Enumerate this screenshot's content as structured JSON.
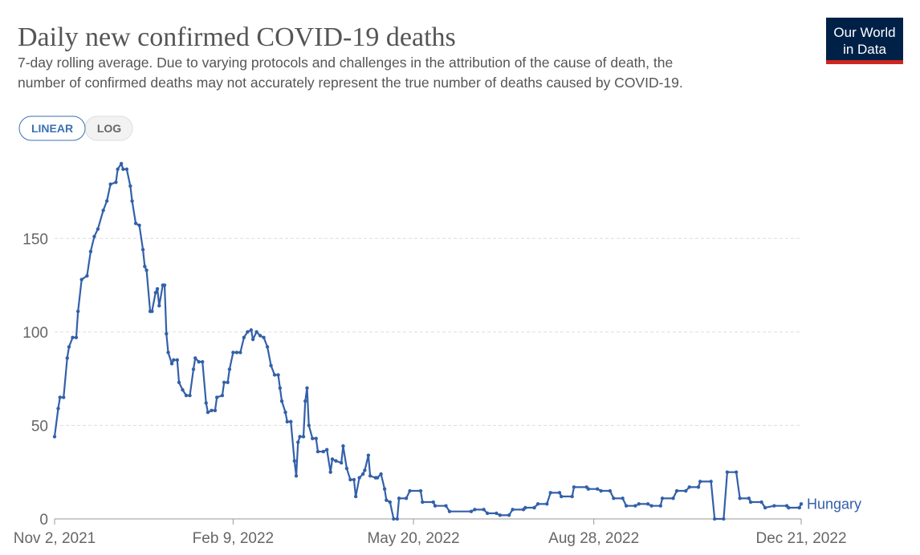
{
  "chart_data": {
    "type": "line",
    "title": "Daily new confirmed COVID-19 deaths",
    "subtitle": [
      "7-day rolling average. Due to varying protocols and challenges in the attribution of the cause of death, the",
      "number of confirmed deaths may not accurately represent the true number of deaths caused by COVID-19."
    ],
    "scale_buttons": [
      "LINEAR",
      "LOG"
    ],
    "log_scale": false,
    "grid": true,
    "xlim": [
      "2021-11-02",
      "2022-12-21"
    ],
    "xticks": [
      {
        "value": "2021-11-02",
        "label": "Nov 2, 2021"
      },
      {
        "value": "2022-02-09",
        "label": "Feb 9, 2022"
      },
      {
        "value": "2022-05-20",
        "label": "May 20, 2022"
      },
      {
        "value": "2022-08-28",
        "label": "Aug 28, 2022"
      },
      {
        "value": "2022-12-21",
        "label": "Dec 21, 2022"
      }
    ],
    "ylim": [
      0,
      190
    ],
    "yticks": [
      0,
      50,
      100,
      150
    ],
    "x": [
      "2021-11-02",
      "2021-11-04",
      "2021-11-05",
      "2021-11-07",
      "2021-11-09",
      "2021-11-10",
      "2021-11-12",
      "2021-11-14",
      "2021-11-15",
      "2021-11-17",
      "2021-11-20",
      "2021-11-22",
      "2021-11-24",
      "2021-11-26",
      "2021-11-29",
      "2021-12-01",
      "2021-12-03",
      "2021-12-06",
      "2021-12-07",
      "2021-12-09",
      "2021-12-10",
      "2021-12-12",
      "2021-12-14",
      "2021-12-15",
      "2021-12-17",
      "2021-12-19",
      "2021-12-21",
      "2021-12-22",
      "2021-12-23",
      "2021-12-25",
      "2021-12-26",
      "2021-12-28",
      "2021-12-29",
      "2021-12-30",
      "2022-01-01",
      "2022-01-02",
      "2022-01-03",
      "2022-01-04",
      "2022-01-06",
      "2022-01-07",
      "2022-01-09",
      "2022-01-10",
      "2022-01-12",
      "2022-01-14",
      "2022-01-16",
      "2022-01-18",
      "2022-01-19",
      "2022-01-21",
      "2022-01-23",
      "2022-01-25",
      "2022-01-26",
      "2022-01-28",
      "2022-01-30",
      "2022-01-31",
      "2022-02-03",
      "2022-02-04",
      "2022-02-06",
      "2022-02-07",
      "2022-02-09",
      "2022-02-11",
      "2022-02-13",
      "2022-02-15",
      "2022-02-17",
      "2022-02-19",
      "2022-02-20",
      "2022-02-22",
      "2022-02-24",
      "2022-02-26",
      "2022-02-28",
      "2022-03-02",
      "2022-03-04",
      "2022-03-06",
      "2022-03-07",
      "2022-03-08",
      "2022-03-10",
      "2022-03-11",
      "2022-03-13",
      "2022-03-15",
      "2022-03-16",
      "2022-03-17",
      "2022-03-18",
      "2022-03-20",
      "2022-03-21",
      "2022-03-22",
      "2022-03-23",
      "2022-03-25",
      "2022-03-27",
      "2022-03-28",
      "2022-03-31",
      "2022-04-02",
      "2022-04-04",
      "2022-04-05",
      "2022-04-07",
      "2022-04-10",
      "2022-04-11",
      "2022-04-13",
      "2022-04-15",
      "2022-04-17",
      "2022-04-18",
      "2022-04-20",
      "2022-04-22",
      "2022-04-23",
      "2022-04-25",
      "2022-04-26",
      "2022-04-29",
      "2022-04-30",
      "2022-05-02",
      "2022-05-04",
      "2022-05-05",
      "2022-05-07",
      "2022-05-09",
      "2022-05-11",
      "2022-05-12",
      "2022-05-16",
      "2022-05-18",
      "2022-05-24",
      "2022-05-25",
      "2022-05-31",
      "2022-06-01",
      "2022-06-07",
      "2022-06-09",
      "2022-06-21",
      "2022-06-23",
      "2022-06-28",
      "2022-06-30",
      "2022-07-05",
      "2022-07-07",
      "2022-07-12",
      "2022-07-14",
      "2022-07-20",
      "2022-07-21",
      "2022-07-26",
      "2022-07-28",
      "2022-08-02",
      "2022-08-04",
      "2022-08-09",
      "2022-08-10",
      "2022-08-16",
      "2022-08-17",
      "2022-08-24",
      "2022-08-25",
      "2022-08-30",
      "2022-09-01",
      "2022-09-06",
      "2022-09-08",
      "2022-09-13",
      "2022-09-15",
      "2022-09-20",
      "2022-09-22",
      "2022-09-27",
      "2022-09-29",
      "2022-10-04",
      "2022-10-05",
      "2022-10-11",
      "2022-10-13",
      "2022-10-18",
      "2022-10-20",
      "2022-10-25",
      "2022-10-26",
      "2022-11-01",
      "2022-11-03",
      "2022-11-08",
      "2022-11-10",
      "2022-11-15",
      "2022-11-17",
      "2022-11-22",
      "2022-11-23",
      "2022-11-29",
      "2022-12-01",
      "2022-12-06",
      "2022-12-13",
      "2022-12-14",
      "2022-12-20",
      "2022-12-21"
    ],
    "series": [
      {
        "name": "Hungary",
        "color": "#3360a9",
        "values": [
          44,
          59,
          65,
          65,
          86,
          92,
          97,
          97,
          111,
          128,
          130,
          143,
          151,
          155,
          165,
          170,
          179,
          180,
          187,
          190,
          187,
          187,
          178,
          170,
          158,
          157,
          144,
          135,
          133,
          111,
          111,
          121,
          123,
          114,
          125,
          125,
          99,
          89,
          83,
          85,
          85,
          73,
          69,
          66,
          66,
          80,
          86,
          84,
          84,
          62,
          57,
          58,
          58,
          65,
          66,
          73,
          73,
          80,
          89,
          89,
          89,
          97,
          100,
          101,
          96,
          100,
          98,
          97,
          92,
          82,
          77,
          77,
          70,
          63,
          57,
          52,
          52,
          31,
          23,
          41,
          44,
          44,
          63,
          70,
          50,
          43,
          43,
          36,
          36,
          37,
          25,
          32,
          31,
          30,
          39,
          27,
          21,
          21,
          12,
          22,
          24,
          26,
          34,
          23,
          22,
          22,
          24,
          16,
          10,
          9,
          0,
          0,
          11,
          11,
          15,
          15,
          9,
          9,
          7,
          7,
          4,
          4,
          5,
          5,
          3,
          3,
          2,
          2,
          5,
          5,
          6,
          6,
          8,
          8,
          14,
          14,
          12,
          12,
          17,
          17,
          16,
          16,
          15,
          15,
          11,
          11,
          7,
          7,
          8,
          8,
          7,
          7,
          11,
          11,
          15,
          15,
          17,
          17,
          20,
          20,
          0,
          0,
          25,
          25,
          11,
          11,
          9,
          9,
          6,
          7,
          7,
          6,
          6,
          8
        ]
      }
    ]
  },
  "logo": [
    "Our World",
    "in Data"
  ]
}
